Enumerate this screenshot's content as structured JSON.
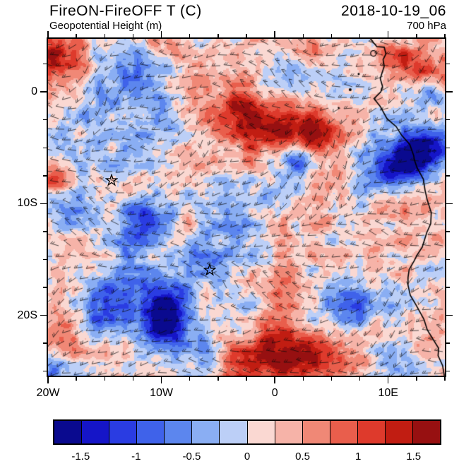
{
  "header": {
    "title_left": "FireON-FireOFF T (C)",
    "title_right": "2018-10-19_06",
    "subtitle_left": "Geopotential Height (m)",
    "subtitle_right": "700 hPa"
  },
  "chart_data": {
    "type": "heatmap",
    "title": "FireON-FireOFF T (C)",
    "datetime": "2018-10-19_06",
    "level": "700 hPa",
    "variable": "Temperature difference (FireON minus FireOFF) in C, with wind barbs and coastline overlay; subtitle references Geopotential Height (m)",
    "units": "C",
    "lon_range": [
      -20,
      15
    ],
    "lat_range": [
      -25.4,
      4.75
    ],
    "x_ticks": [
      {
        "value": -20,
        "label": "20W"
      },
      {
        "value": -10,
        "label": "10W"
      },
      {
        "value": 0,
        "label": "0"
      },
      {
        "value": 10,
        "label": "10E"
      }
    ],
    "y_ticks": [
      {
        "value": 0,
        "label": "0"
      },
      {
        "value": -10,
        "label": "10S"
      },
      {
        "value": -20,
        "label": "20S"
      }
    ],
    "minor_tick_step_deg": 2.5,
    "colorbar": {
      "levels": [
        -1.5,
        -1.25,
        -1.0,
        -0.75,
        -0.5,
        -0.25,
        0,
        0.25,
        0.5,
        0.75,
        1.0,
        1.25,
        1.5
      ],
      "colors": [
        "#0a0a8f",
        "#1515c8",
        "#2a3ce2",
        "#3f62ea",
        "#5c86ee",
        "#8aaef3",
        "#bccff7",
        "#fad8d2",
        "#f6b3a8",
        "#f08876",
        "#e95e4c",
        "#de3a2c",
        "#c11d12",
        "#971011"
      ],
      "tick_labels": [
        "-1.5",
        "-1",
        "-0.5",
        "0",
        "0.5",
        "1",
        "1.5"
      ]
    },
    "markers": [
      {
        "name": "ascension-island",
        "lon": -14.42,
        "lat": -7.95
      },
      {
        "name": "st-helena-island",
        "lon": -5.72,
        "lat": -15.97
      }
    ],
    "islands": [
      {
        "name": "bioko",
        "lon": 8.7,
        "lat": 3.45,
        "r": 4
      },
      {
        "name": "principe",
        "lon": 7.4,
        "lat": 1.6,
        "r": 1.5
      },
      {
        "name": "sao-tome",
        "lon": 6.65,
        "lat": 0.2,
        "r": 2
      },
      {
        "name": "annobon",
        "lon": 5.63,
        "lat": -1.43,
        "r": 1.2
      }
    ],
    "coastline": [
      [
        8.45,
        4.75
      ],
      [
        8.75,
        4.35
      ],
      [
        9.0,
        4.05
      ],
      [
        9.65,
        4.0
      ],
      [
        9.8,
        3.4
      ],
      [
        9.55,
        2.9
      ],
      [
        9.65,
        2.3
      ],
      [
        9.3,
        1.2
      ],
      [
        9.5,
        0.5
      ],
      [
        9.35,
        0.0
      ],
      [
        8.75,
        -0.6
      ],
      [
        9.3,
        -1.3
      ],
      [
        9.9,
        -2.4
      ],
      [
        10.7,
        -3.1
      ],
      [
        11.2,
        -3.9
      ],
      [
        11.9,
        -4.7
      ],
      [
        12.25,
        -5.7
      ],
      [
        12.3,
        -6.05
      ],
      [
        12.55,
        -6.8
      ],
      [
        13.1,
        -7.8
      ],
      [
        13.25,
        -8.8
      ],
      [
        13.45,
        -9.7
      ],
      [
        13.8,
        -10.8
      ],
      [
        13.75,
        -11.8
      ],
      [
        13.4,
        -12.6
      ],
      [
        13.0,
        -13.9
      ],
      [
        12.55,
        -14.6
      ],
      [
        12.3,
        -15.1
      ],
      [
        11.85,
        -15.9
      ],
      [
        11.75,
        -16.6
      ],
      [
        11.75,
        -17.3
      ],
      [
        11.95,
        -18.2
      ],
      [
        12.45,
        -19.05
      ],
      [
        13.15,
        -20.35
      ],
      [
        13.45,
        -21.3
      ],
      [
        14.05,
        -22.3
      ],
      [
        14.45,
        -22.95
      ],
      [
        14.4,
        -23.6
      ],
      [
        14.8,
        -24.5
      ],
      [
        14.95,
        -25.4
      ]
    ],
    "anomaly_blobs": [
      [
        -19.2,
        3.2,
        1.3,
        1.8
      ],
      [
        -13.0,
        0.2,
        -0.55,
        2.6
      ],
      [
        -3.5,
        -1.2,
        0.7,
        1.4
      ],
      [
        -1.5,
        -3.3,
        1.1,
        1.9
      ],
      [
        3.5,
        -3.8,
        1.7,
        1.5
      ],
      [
        0.8,
        -3.5,
        0.9,
        1.2
      ],
      [
        10.5,
        3.0,
        1.1,
        1.4
      ],
      [
        14.5,
        1.3,
        1.0,
        1.6
      ],
      [
        13.9,
        0.2,
        -1.5,
        0.9
      ],
      [
        10.6,
        -6.3,
        -1.8,
        1.5
      ],
      [
        13.4,
        -5.3,
        -1.3,
        1.4
      ],
      [
        2.3,
        -5.6,
        -1.2,
        1.2
      ],
      [
        -19.5,
        -7.5,
        0.8,
        1.1
      ],
      [
        -18.5,
        -10.5,
        -0.6,
        1.4
      ],
      [
        -11.9,
        -12.0,
        -1.4,
        1.7
      ],
      [
        -6.2,
        -13.8,
        -0.8,
        1.4
      ],
      [
        -4.0,
        -9.5,
        -0.55,
        2.4
      ],
      [
        0.2,
        -16.8,
        0.55,
        1.4
      ],
      [
        12.0,
        -12.5,
        0.45,
        2.0
      ],
      [
        6.9,
        -18.5,
        -0.85,
        1.4
      ],
      [
        -14.8,
        -19.0,
        -1.0,
        1.7
      ],
      [
        -9.8,
        -20.3,
        -1.8,
        2.0
      ],
      [
        -18.5,
        -22.5,
        1.1,
        1.3
      ],
      [
        -19.5,
        -24.5,
        -1.2,
        1.2
      ],
      [
        0.5,
        -23.8,
        1.5,
        1.8
      ],
      [
        -3.8,
        -24.6,
        0.9,
        1.3
      ],
      [
        4.5,
        -24.0,
        0.8,
        1.5
      ]
    ],
    "noise": {
      "seed": 7,
      "base": 0.12,
      "octaves": [
        {
          "scale": 9,
          "amp": 0.28
        },
        {
          "scale": 22,
          "amp": 0.33
        },
        {
          "scale": 55,
          "amp": 0.35
        }
      ]
    }
  }
}
